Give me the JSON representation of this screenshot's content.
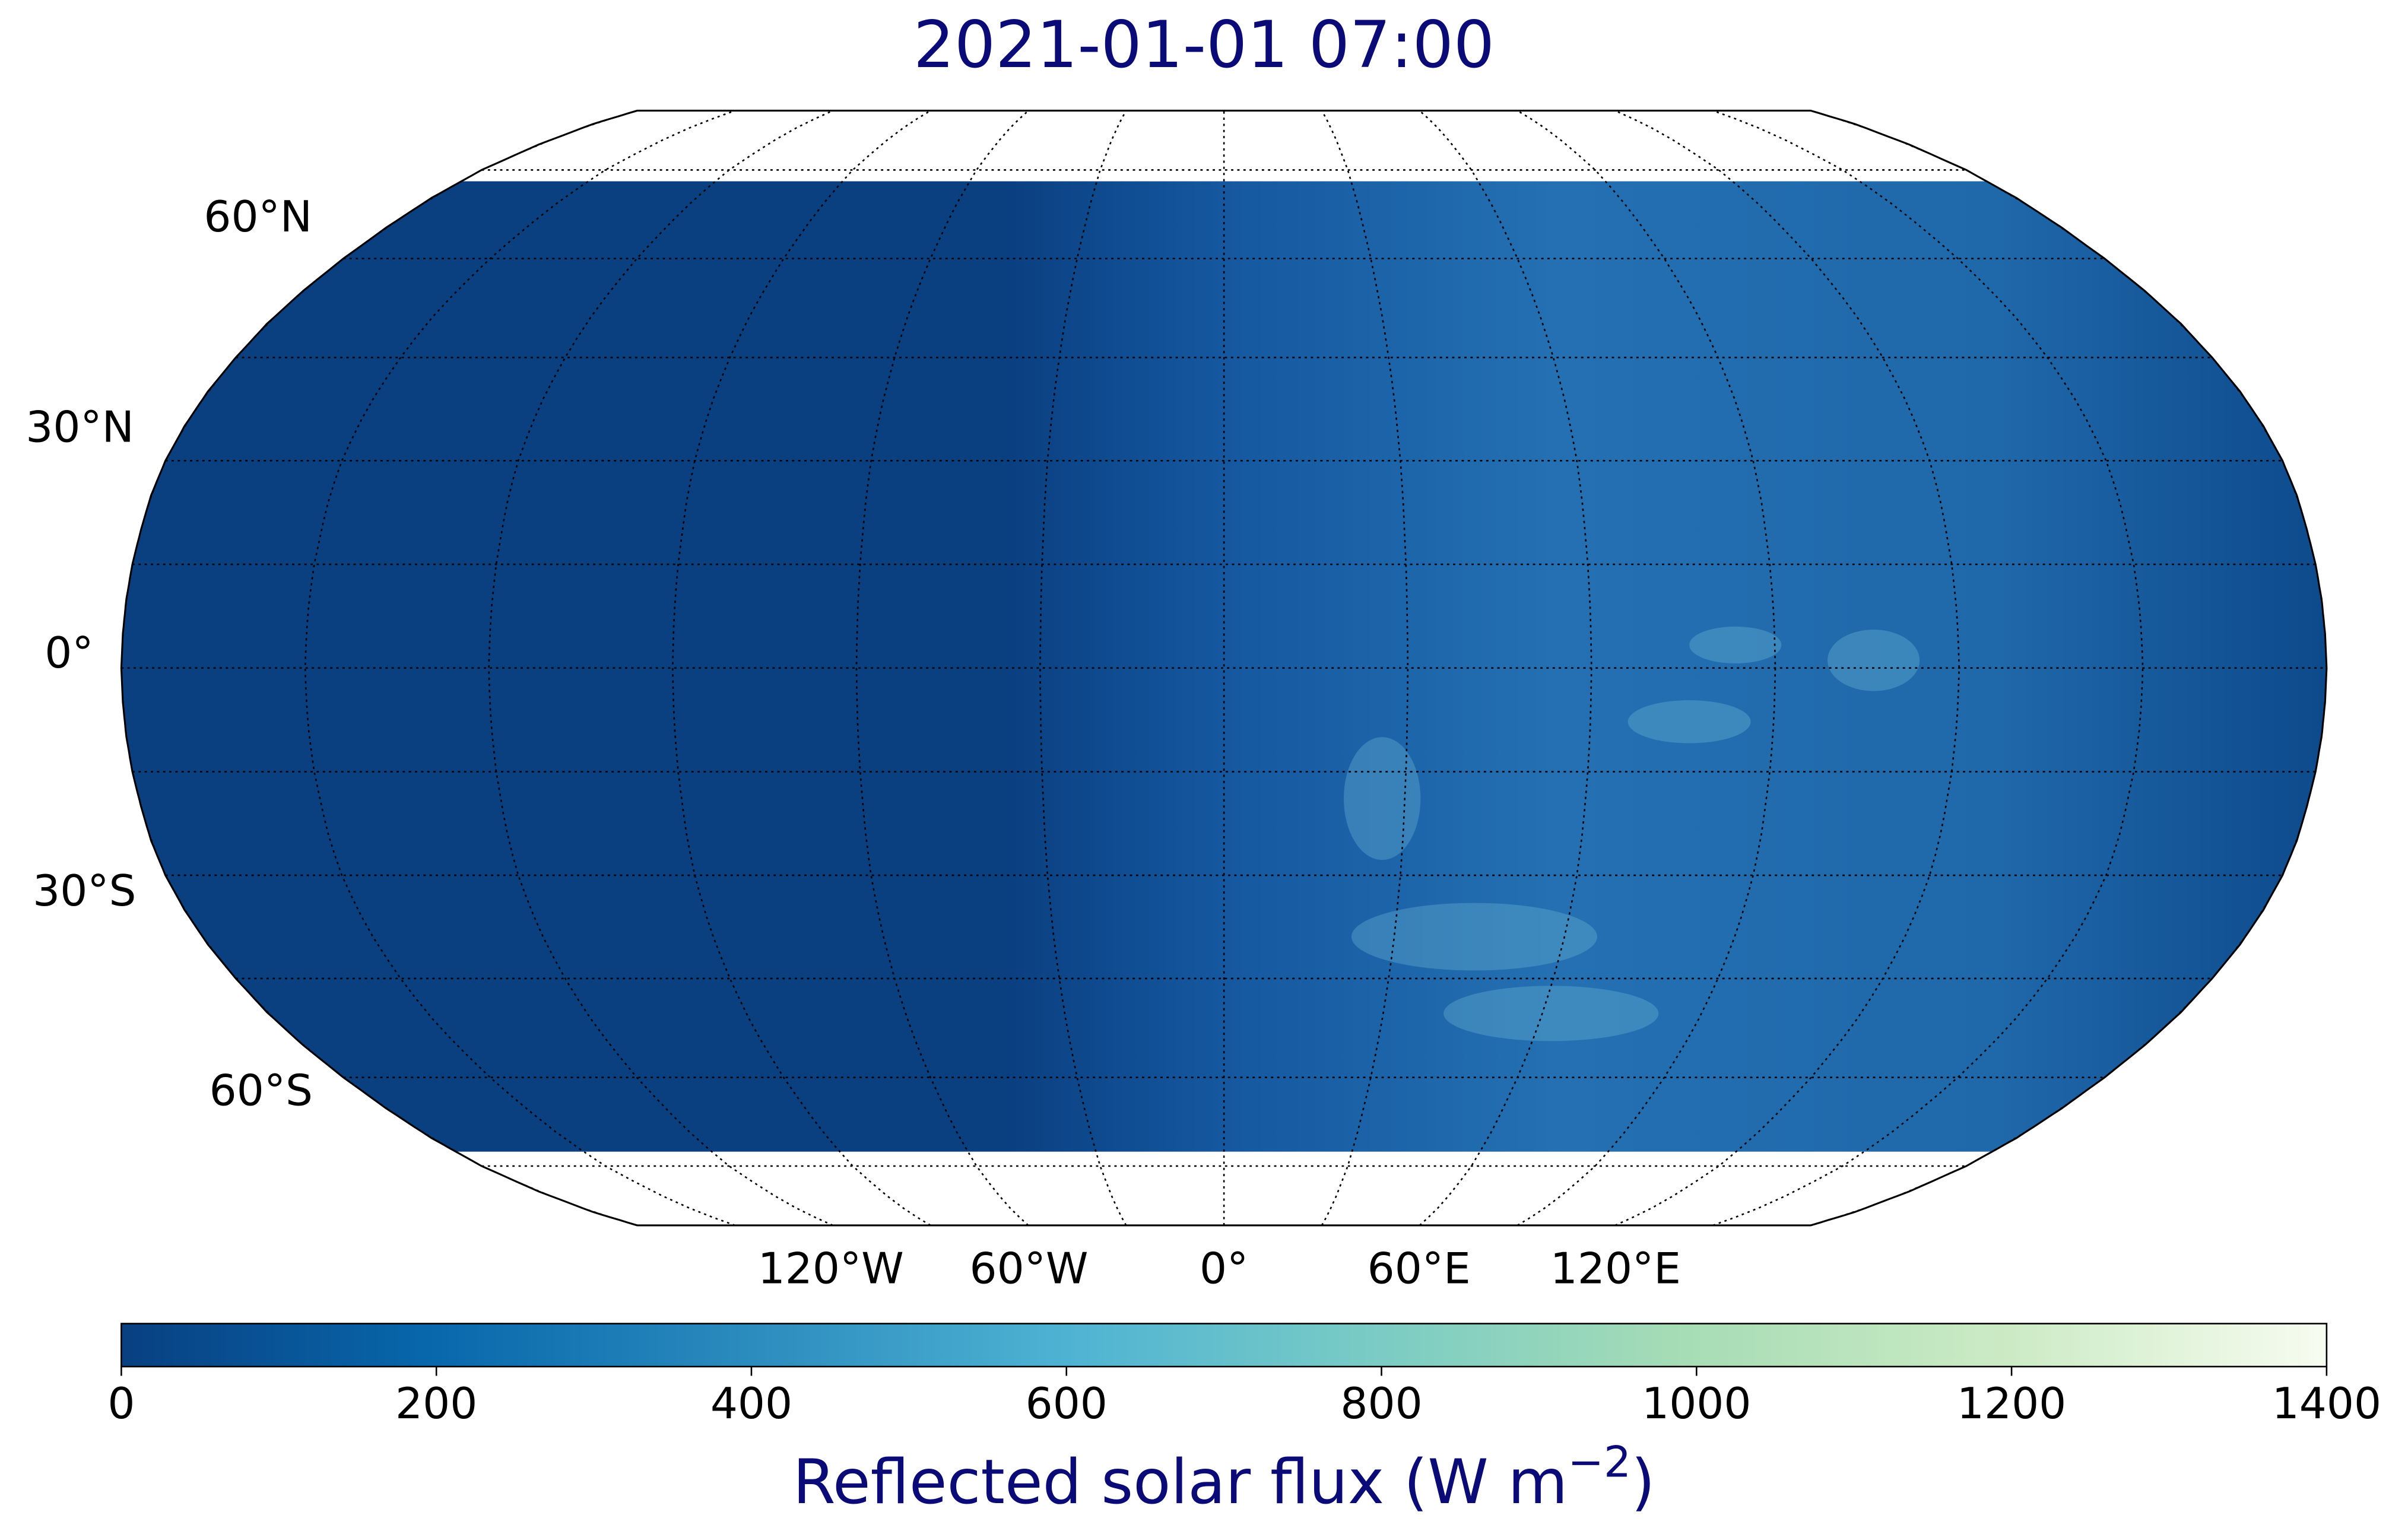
{
  "title": "2021-01-01 07:00",
  "map": {
    "lat_labels": [
      "60°N",
      "30°N",
      "0°",
      "30°S",
      "60°S"
    ],
    "lon_labels": [
      "120°W",
      "60°W",
      "0°",
      "60°E",
      "120°E"
    ]
  },
  "colorbar": {
    "lim": [
      0,
      1400
    ],
    "ticks": [
      0,
      200,
      400,
      600,
      800,
      1000,
      1200,
      1400
    ],
    "colors": [
      "#084081",
      "#0868ac",
      "#2b8cbe",
      "#4eb3d3",
      "#7bccc4",
      "#a8ddb5",
      "#ccebc5",
      "#f7fcf0"
    ],
    "label": {
      "text": "Reflected solar flux (W m",
      "sup": "−2",
      "tail": ")"
    }
  }
}
